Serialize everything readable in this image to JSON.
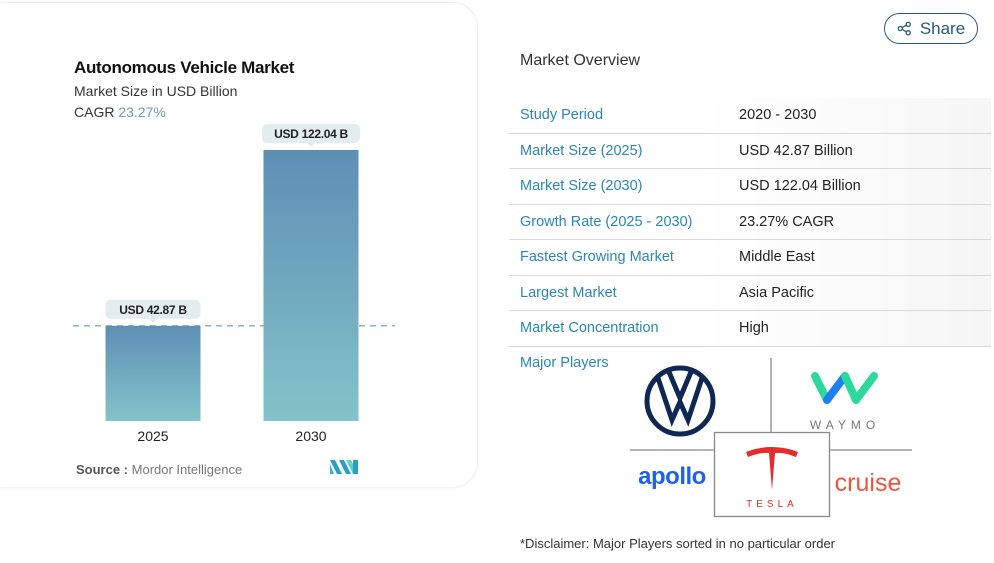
{
  "chart_data": {
    "type": "bar",
    "title": "Autonomous Vehicle Market",
    "subtitle": "Market Size in USD Billion",
    "cagr_label": "CAGR",
    "cagr_value": "23.27%",
    "categories": [
      "2025",
      "2030"
    ],
    "values": [
      42.87,
      122.04
    ],
    "data_labels": [
      "USD 42.87 B",
      "USD 122.04 B"
    ],
    "ylim": [
      0,
      122.04
    ],
    "xlabel": "",
    "ylabel": "",
    "grid": false,
    "reference_line": 42.87,
    "colors": {
      "bar_top": "#5d8fb5",
      "bar_bottom": "#84c3c9",
      "label_bg": "#e3ecef"
    }
  },
  "source": {
    "label": "Source :",
    "value": "Mordor Intelligence"
  },
  "share_button": {
    "label": "Share",
    "icon": "share-icon"
  },
  "overview": {
    "title": "Market Overview",
    "rows": [
      {
        "key": "Study Period",
        "value": "2020 - 2030"
      },
      {
        "key": "Market Size (2025)",
        "value": "USD 42.87 Billion"
      },
      {
        "key": "Market Size (2030)",
        "value": "USD 122.04 Billion"
      },
      {
        "key": "Growth Rate (2025 - 2030)",
        "value": "23.27% CAGR"
      },
      {
        "key": "Fastest Growing Market",
        "value": "Middle East"
      },
      {
        "key": "Largest Market",
        "value": "Asia Pacific"
      },
      {
        "key": "Market Concentration",
        "value": "High"
      }
    ]
  },
  "major_players": {
    "label": "Major Players",
    "logos": [
      {
        "name": "Volkswagen",
        "text": ""
      },
      {
        "name": "Waymo",
        "text": "WAYMO"
      },
      {
        "name": "Apollo",
        "text": "apollo"
      },
      {
        "name": "Tesla",
        "text": "TESLA"
      },
      {
        "name": "Cruise",
        "text": "cruise"
      }
    ]
  },
  "disclaimer": "*Disclaimer: Major Players sorted in no particular order",
  "colors": {
    "accent": "#2a86b8",
    "share_border": "#2b5a74"
  }
}
